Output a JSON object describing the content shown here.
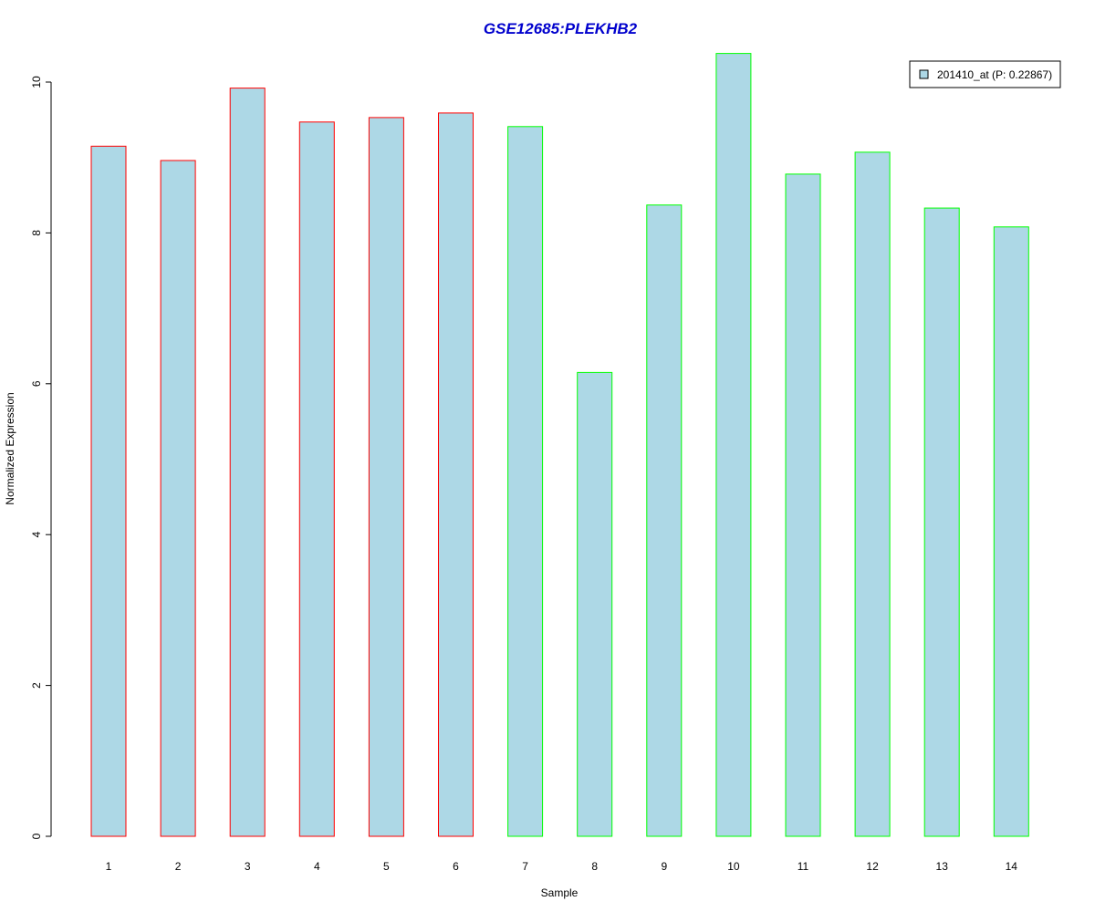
{
  "chart_data": {
    "type": "bar",
    "title": "GSE12685:PLEKHB2",
    "xlabel": "Sample",
    "ylabel": "Normalized Expression",
    "categories": [
      "1",
      "2",
      "3",
      "4",
      "5",
      "6",
      "7",
      "8",
      "9",
      "10",
      "11",
      "12",
      "13",
      "14"
    ],
    "values": [
      9.15,
      8.96,
      9.92,
      9.47,
      9.53,
      9.59,
      9.41,
      6.15,
      8.37,
      10.38,
      8.78,
      9.07,
      8.33,
      8.08
    ],
    "y_ticks": [
      "0",
      "2",
      "4",
      "6",
      "8",
      "10"
    ],
    "ylim": [
      0,
      10.4
    ],
    "grid": false,
    "legend": {
      "label": "201410_at (P: 0.22867)",
      "placement": "top-right"
    },
    "colors": {
      "title": "#0000CD",
      "bar_fill": "#ADD8E6",
      "border_group1": "#FF0000",
      "border_group2": "#00FF00",
      "axis": "#000000"
    },
    "border_colors": [
      "#FF0000",
      "#FF0000",
      "#FF0000",
      "#FF0000",
      "#FF0000",
      "#FF0000",
      "#00FF00",
      "#00FF00",
      "#00FF00",
      "#00FF00",
      "#00FF00",
      "#00FF00",
      "#00FF00",
      "#00FF00"
    ]
  }
}
